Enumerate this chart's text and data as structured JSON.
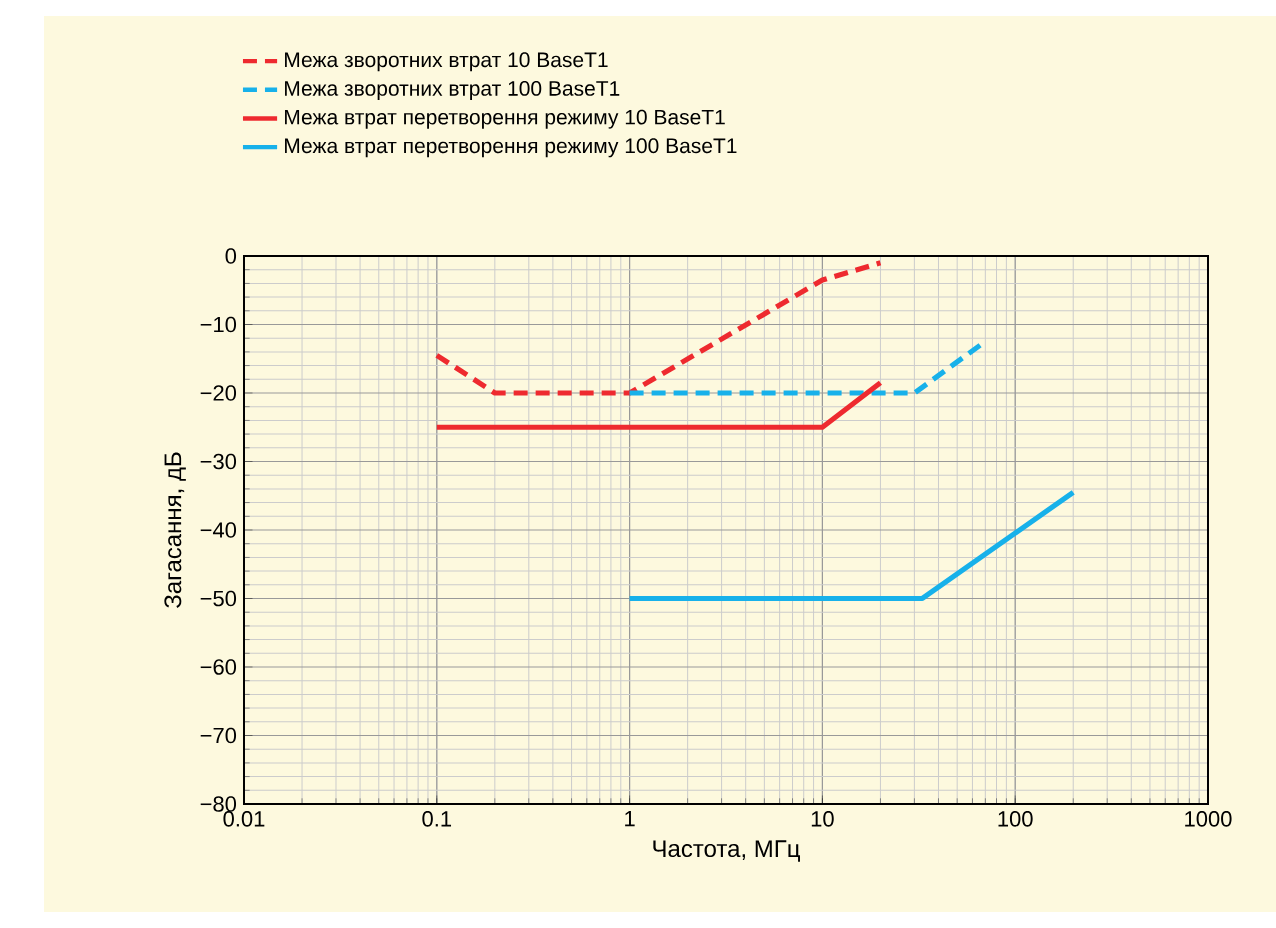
{
  "chart_data": {
    "type": "line",
    "xlabel": "Частота, МГц",
    "ylabel": "Загасання, дБ",
    "log": "x",
    "grid": true,
    "legend": "top",
    "xlim": [
      0.01,
      1000
    ],
    "xticks": [
      0.01,
      0.1,
      1,
      10,
      100,
      1000
    ],
    "ylim": [
      -80,
      0
    ],
    "yticks": [
      {
        "value": -80,
        "label": "−80"
      },
      {
        "value": -70,
        "label": "−70"
      },
      {
        "value": -60,
        "label": "−60"
      },
      {
        "value": -50,
        "label": "−50"
      },
      {
        "value": -40,
        "label": "−40"
      },
      {
        "value": -30,
        "label": "−30"
      },
      {
        "value": -20,
        "label": "−20"
      },
      {
        "value": -10,
        "label": "−10"
      },
      0
    ],
    "series": [
      {
        "name": "Межа зворотних втрат 10 BaseT1",
        "color": "#ee2a2f",
        "line_style": "dashed",
        "x": [
          0.1,
          0.2,
          1,
          10,
          20
        ],
        "values": [
          -14.5,
          -20,
          -20,
          -3.5,
          -1
        ]
      },
      {
        "name": "Межа зворотних втрат 100 BaseT1",
        "color": "#17b1ea",
        "line_style": "dashed",
        "x": [
          1,
          30,
          66
        ],
        "values": [
          -20,
          -20,
          -13
        ]
      },
      {
        "name": "Межа втрат перетворення режиму 10 BaseT1",
        "color": "#ee2a2f",
        "line_style": "solid",
        "x": [
          0.1,
          10,
          20
        ],
        "values": [
          -25,
          -25,
          -18.5
        ]
      },
      {
        "name": "Межа втрат перетворення режиму 100 BaseT1",
        "color": "#17b1ea",
        "line_style": "solid",
        "x": [
          1,
          33,
          200
        ],
        "values": [
          -50,
          -50,
          -34.5
        ]
      }
    ]
  }
}
